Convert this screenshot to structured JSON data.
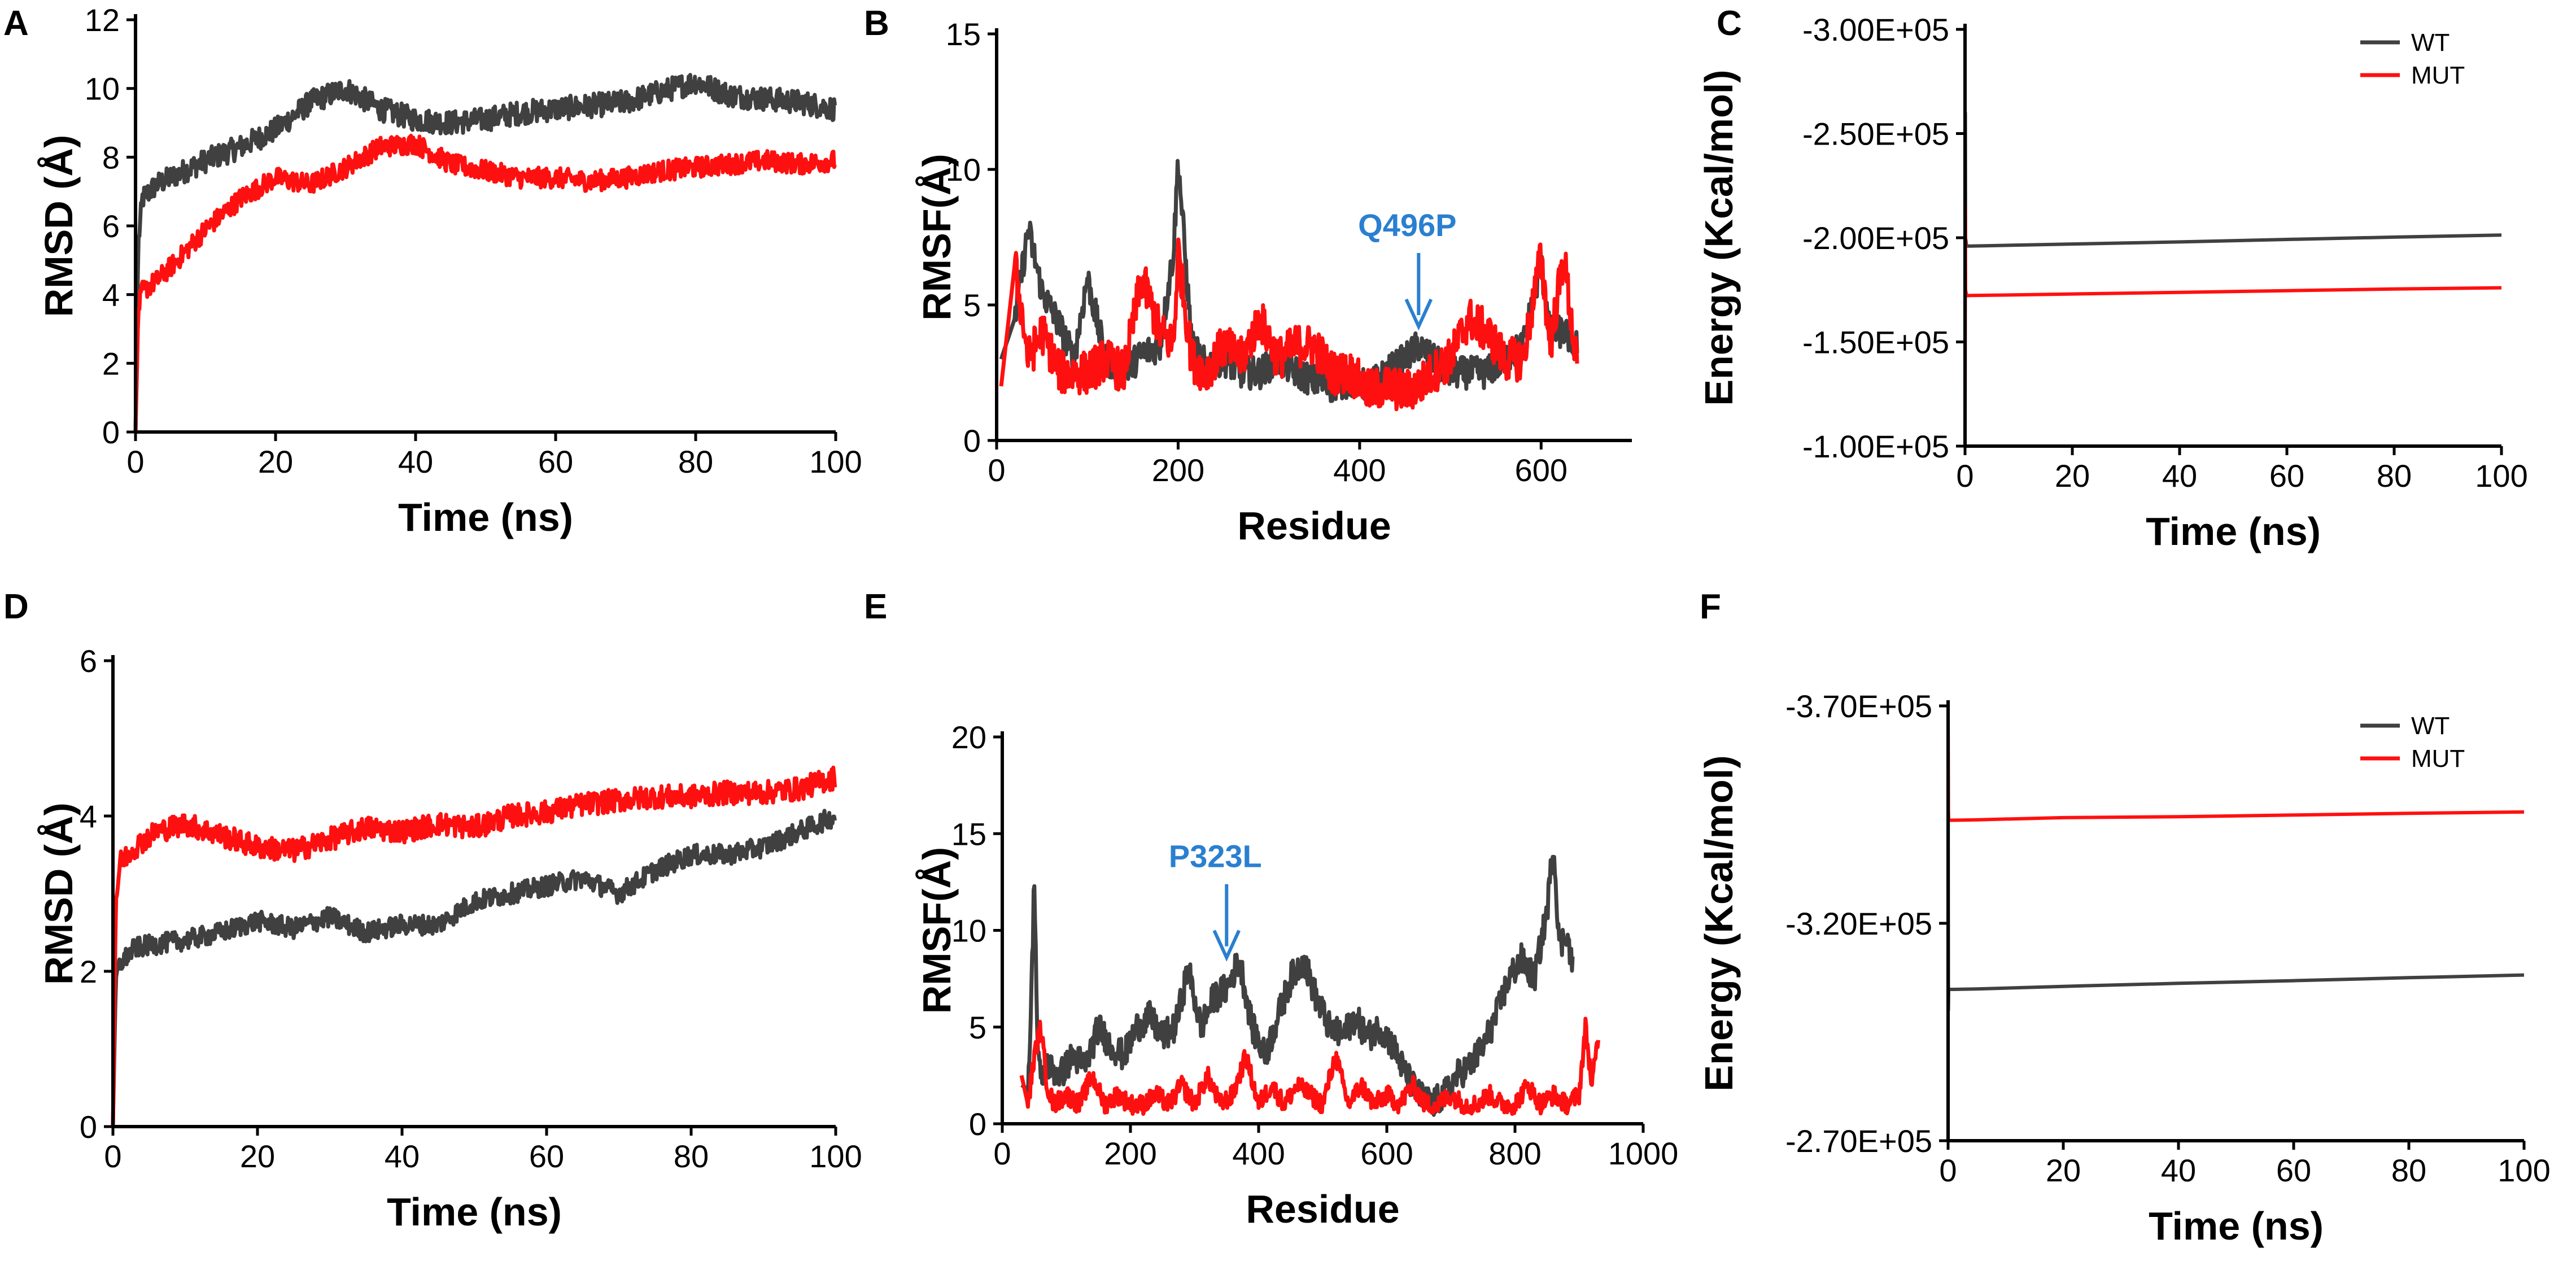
{
  "colors": {
    "wt": "#404040",
    "mut": "#ff1010",
    "annotation": "#2a7fd0",
    "axis": "#000000"
  },
  "chart_data": [
    {
      "panel": "A",
      "type": "line",
      "xlabel": "Time (ns)",
      "ylabel": "RMSD (Å)",
      "xlim": [
        0,
        100
      ],
      "ylim": [
        0,
        12
      ],
      "xticks": [
        0,
        20,
        40,
        60,
        80,
        100
      ],
      "yticks": [
        0,
        2,
        4,
        6,
        8,
        10,
        12
      ],
      "xtick_labels": [
        "0",
        "20",
        "40",
        "60",
        "80",
        "100"
      ],
      "ytick_labels": [
        "0",
        "2",
        "4",
        "6",
        "8",
        "10",
        "12"
      ],
      "series": [
        {
          "name": "WT",
          "key": "wt",
          "x": [
            0,
            0.4,
            1,
            3,
            6,
            10,
            15,
            20,
            25,
            30,
            35,
            40,
            45,
            50,
            55,
            60,
            65,
            70,
            75,
            80,
            85,
            90,
            95,
            100
          ],
          "y": [
            0,
            5.5,
            6.8,
            7.2,
            7.5,
            7.9,
            8.3,
            8.8,
            9.6,
            10.0,
            9.4,
            9.1,
            9.0,
            9.1,
            9.3,
            9.4,
            9.5,
            9.6,
            9.9,
            10.2,
            9.8,
            9.7,
            9.6,
            9.4
          ],
          "noise": 0.35
        },
        {
          "name": "MUT",
          "key": "mut",
          "x": [
            0,
            0.4,
            1,
            3,
            6,
            10,
            15,
            20,
            25,
            30,
            35,
            40,
            45,
            50,
            55,
            60,
            65,
            70,
            75,
            80,
            85,
            90,
            95,
            100
          ],
          "y": [
            0,
            3.6,
            4.1,
            4.4,
            5.0,
            5.9,
            6.8,
            7.4,
            7.2,
            7.7,
            8.3,
            8.4,
            7.8,
            7.6,
            7.4,
            7.4,
            7.3,
            7.4,
            7.6,
            7.7,
            7.8,
            7.9,
            7.8,
            7.9
          ],
          "noise": 0.3
        }
      ]
    },
    {
      "panel": "B",
      "type": "line",
      "xlabel": "Residue",
      "ylabel": "RMSF(Å)",
      "xlim": [
        0,
        700
      ],
      "ylim": [
        0,
        15
      ],
      "xticks": [
        0,
        200,
        400,
        600
      ],
      "yticks": [
        0,
        5,
        10,
        15
      ],
      "xtick_labels": [
        "0",
        "200",
        "400",
        "600"
      ],
      "ytick_labels": [
        "0",
        "5",
        "10",
        "15"
      ],
      "annotation": {
        "text": "Q496P",
        "x": 465,
        "y": 4.0
      },
      "series": [
        {
          "name": "WT",
          "key": "wt",
          "x": [
            5,
            20,
            35,
            50,
            70,
            85,
            100,
            120,
            140,
            160,
            180,
            195,
            200,
            215,
            230,
            250,
            270,
            290,
            310,
            330,
            350,
            370,
            390,
            410,
            430,
            450,
            465,
            480,
            500,
            520,
            540,
            560,
            580,
            600,
            610,
            625,
            640
          ],
          "y": [
            3.0,
            4.5,
            7.8,
            5.5,
            4.2,
            3.0,
            6.0,
            3.0,
            2.5,
            3.2,
            3.5,
            7.0,
            10.4,
            3.5,
            2.8,
            3.0,
            2.5,
            2.5,
            3.0,
            2.5,
            2.2,
            2.0,
            2.2,
            2.0,
            2.5,
            3.0,
            3.5,
            3.0,
            2.5,
            2.5,
            2.5,
            3.0,
            3.5,
            6.5,
            4.0,
            4.0,
            3.5
          ],
          "noise": 0.6
        },
        {
          "name": "MUT",
          "key": "mut",
          "x": [
            5,
            20,
            35,
            50,
            70,
            85,
            100,
            120,
            140,
            160,
            180,
            195,
            200,
            215,
            230,
            250,
            270,
            290,
            310,
            330,
            350,
            370,
            390,
            410,
            430,
            450,
            465,
            480,
            500,
            520,
            540,
            560,
            580,
            600,
            610,
            625,
            640
          ],
          "y": [
            2.0,
            6.5,
            3.0,
            4.0,
            2.5,
            2.5,
            2.5,
            3.0,
            2.5,
            6.0,
            4.0,
            3.5,
            7.0,
            3.0,
            2.5,
            3.5,
            3.0,
            4.5,
            3.0,
            3.5,
            3.5,
            2.5,
            2.5,
            1.8,
            2.0,
            1.8,
            2.0,
            2.5,
            3.0,
            4.5,
            4.0,
            3.0,
            3.0,
            6.8,
            3.5,
            6.8,
            2.5
          ],
          "noise": 0.8
        }
      ]
    },
    {
      "panel": "C",
      "type": "line",
      "xlabel": "Time (ns)",
      "ylabel": "Energy (Kcal/mol)",
      "xlim": [
        0,
        100
      ],
      "ylim": [
        -300000,
        -100000
      ],
      "y_inverted": true,
      "xticks": [
        0,
        20,
        40,
        60,
        80,
        100
      ],
      "yticks": [
        -300000,
        -250000,
        -200000,
        -150000,
        -100000
      ],
      "xtick_labels": [
        "0",
        "20",
        "40",
        "60",
        "80",
        "100"
      ],
      "ytick_labels": [
        "-3.00E+05",
        "-2.50E+05",
        "-2.00E+05",
        "-1.50E+05",
        "-1.00E+05"
      ],
      "legend": {
        "position": "top-right",
        "entries": [
          "WT",
          "MUT"
        ]
      },
      "series": [
        {
          "name": "WT",
          "key": "wt",
          "x": [
            0,
            0.05,
            0.1,
            0.3,
            1,
            5,
            20,
            40,
            60,
            80,
            100
          ],
          "y": [
            -100000,
            -260000,
            -200000,
            -196000,
            -196000,
            -196200,
            -197000,
            -198000,
            -199200,
            -200300,
            -201300
          ]
        },
        {
          "name": "MUT",
          "key": "mut",
          "x": [
            0,
            0.05,
            0.1,
            0.3,
            1,
            5,
            20,
            40,
            60,
            80,
            100
          ],
          "y": [
            -100000,
            -215000,
            -175000,
            -172200,
            -172300,
            -172400,
            -173000,
            -173800,
            -174600,
            -175400,
            -176000
          ]
        }
      ]
    },
    {
      "panel": "D",
      "type": "line",
      "xlabel": "Time (ns)",
      "ylabel": "RMSD (Å)",
      "xlim": [
        0,
        100
      ],
      "ylim": [
        0,
        6
      ],
      "xticks": [
        0,
        20,
        40,
        60,
        80,
        100
      ],
      "yticks": [
        0,
        2,
        4,
        6
      ],
      "xtick_labels": [
        "0",
        "20",
        "40",
        "60",
        "80",
        "100"
      ],
      "ytick_labels": [
        "0",
        "2",
        "4",
        "6"
      ],
      "series": [
        {
          "name": "WT",
          "key": "wt",
          "x": [
            0,
            0.4,
            1,
            3,
            6,
            10,
            15,
            20,
            25,
            30,
            35,
            40,
            45,
            50,
            55,
            60,
            65,
            70,
            75,
            80,
            85,
            90,
            95,
            100
          ],
          "y": [
            0,
            1.9,
            2.1,
            2.3,
            2.35,
            2.4,
            2.5,
            2.65,
            2.55,
            2.7,
            2.5,
            2.6,
            2.6,
            2.9,
            3.0,
            3.1,
            3.2,
            3.0,
            3.3,
            3.5,
            3.5,
            3.6,
            3.8,
            4.0
          ],
          "noise": 0.13
        },
        {
          "name": "MUT",
          "key": "mut",
          "x": [
            0,
            0.4,
            1,
            3,
            6,
            10,
            15,
            20,
            25,
            30,
            35,
            40,
            45,
            50,
            55,
            60,
            65,
            70,
            75,
            80,
            85,
            90,
            95,
            100
          ],
          "y": [
            0,
            2.9,
            3.4,
            3.6,
            3.8,
            3.9,
            3.75,
            3.6,
            3.55,
            3.7,
            3.85,
            3.8,
            3.9,
            3.85,
            4.0,
            4.05,
            4.15,
            4.2,
            4.25,
            4.25,
            4.3,
            4.3,
            4.35,
            4.5
          ],
          "noise": 0.15
        }
      ]
    },
    {
      "panel": "E",
      "type": "line",
      "xlabel": "Residue",
      "ylabel": "RMSF(Å)",
      "xlim": [
        0,
        1000
      ],
      "ylim": [
        0,
        20
      ],
      "xticks": [
        0,
        200,
        400,
        600,
        800,
        1000
      ],
      "yticks": [
        0,
        5,
        10,
        15,
        20
      ],
      "xtick_labels": [
        "0",
        "200",
        "400",
        "600",
        "800",
        "1000"
      ],
      "ytick_labels": [
        "0",
        "5",
        "10",
        "15",
        "20"
      ],
      "annotation": {
        "text": "P323L",
        "x": 350,
        "y": 8.3
      },
      "series": [
        {
          "name": "WT",
          "key": "wt",
          "x": [
            30,
            40,
            45,
            50,
            55,
            60,
            70,
            90,
            110,
            130,
            150,
            170,
            190,
            210,
            230,
            250,
            270,
            290,
            310,
            330,
            350,
            370,
            390,
            410,
            430,
            450,
            470,
            490,
            510,
            530,
            550,
            570,
            590,
            610,
            630,
            650,
            670,
            690,
            710,
            730,
            750,
            770,
            790,
            810,
            830,
            850,
            860,
            870,
            880,
            890
          ],
          "y": [
            2.0,
            1.8,
            6.0,
            13.0,
            4.0,
            2.2,
            3.0,
            2.5,
            3.5,
            3.0,
            5.0,
            4.0,
            3.5,
            5.0,
            5.5,
            4.5,
            5.0,
            8.0,
            5.0,
            6.5,
            7.0,
            8.5,
            5.0,
            3.5,
            5.5,
            7.5,
            8.5,
            6.5,
            5.0,
            4.5,
            5.5,
            4.5,
            5.0,
            4.0,
            2.5,
            1.5,
            1.0,
            1.5,
            2.5,
            3.0,
            4.0,
            5.5,
            7.5,
            8.5,
            7.5,
            11.0,
            14.5,
            9.0,
            10.0,
            8.0
          ],
          "noise": 0.8
        },
        {
          "name": "MUT",
          "key": "mut",
          "x": [
            30,
            40,
            50,
            60,
            70,
            80,
            100,
            120,
            140,
            160,
            180,
            200,
            220,
            240,
            260,
            280,
            300,
            320,
            340,
            360,
            380,
            400,
            420,
            440,
            460,
            480,
            500,
            520,
            540,
            560,
            580,
            600,
            620,
            640,
            660,
            680,
            700,
            720,
            740,
            760,
            780,
            800,
            820,
            840,
            860,
            880,
            900,
            910,
            920,
            930
          ],
          "y": [
            2.5,
            1.0,
            3.5,
            5.0,
            2.0,
            1.0,
            1.5,
            1.0,
            2.5,
            1.0,
            1.5,
            1.0,
            1.0,
            1.5,
            1.0,
            2.0,
            1.0,
            2.5,
            1.0,
            1.5,
            3.5,
            1.0,
            2.0,
            1.0,
            2.0,
            1.5,
            1.0,
            3.5,
            1.0,
            2.0,
            1.0,
            1.5,
            1.0,
            2.0,
            1.0,
            1.0,
            1.5,
            1.0,
            1.0,
            1.5,
            1.0,
            1.0,
            2.0,
            1.0,
            1.5,
            1.0,
            1.5,
            5.0,
            2.0,
            4.5
          ],
          "noise": 0.5
        }
      ]
    },
    {
      "panel": "F",
      "type": "line",
      "xlabel": "Time (ns)",
      "ylabel": "Energy (Kcal/mol)",
      "xlim": [
        0,
        100
      ],
      "ylim": [
        -370000,
        -270000
      ],
      "y_inverted": true,
      "xticks": [
        0,
        20,
        40,
        60,
        80,
        100
      ],
      "yticks": [
        -370000,
        -320000,
        -270000
      ],
      "xtick_labels": [
        "0",
        "20",
        "40",
        "60",
        "80",
        "100"
      ],
      "ytick_labels": [
        "-3.70E+05",
        "-3.20E+05",
        "-2.70E+05"
      ],
      "legend": {
        "position": "top-right",
        "entries": [
          "WT",
          "MUT"
        ]
      },
      "series": [
        {
          "name": "WT",
          "key": "wt",
          "x": [
            0,
            0.05,
            0.1,
            0.3,
            1,
            5,
            20,
            40,
            60,
            80,
            100
          ],
          "y": [
            -370000,
            -300000,
            -305000,
            -304800,
            -304800,
            -304900,
            -305500,
            -306200,
            -306800,
            -307500,
            -308100
          ]
        },
        {
          "name": "MUT",
          "key": "mut",
          "x": [
            0,
            0.05,
            0.1,
            0.3,
            1,
            5,
            20,
            40,
            60,
            80,
            100
          ],
          "y": [
            -370000,
            -346000,
            -343800,
            -343700,
            -343700,
            -343800,
            -344300,
            -344500,
            -344900,
            -345300,
            -345600
          ]
        }
      ]
    }
  ]
}
